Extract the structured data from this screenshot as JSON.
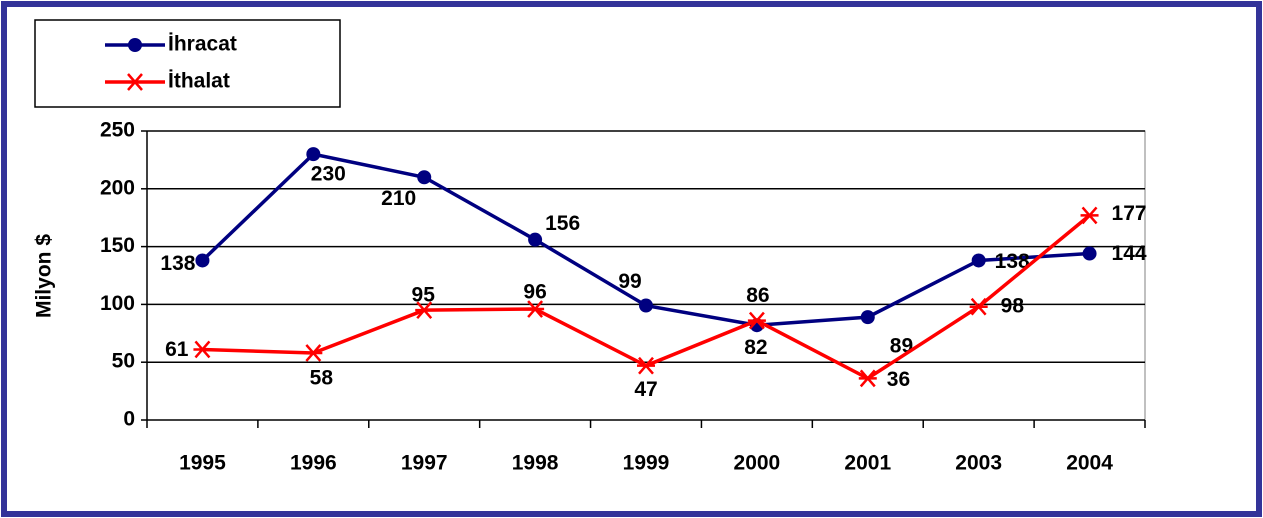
{
  "chart_data": {
    "type": "line",
    "y_label": "Milyon $",
    "categories": [
      "1995",
      "1996",
      "1997",
      "1998",
      "1999",
      "2000",
      "2001",
      "2003",
      "2004"
    ],
    "series": [
      {
        "name": "İhracat",
        "color": "#000080",
        "marker": "circle",
        "values": [
          138,
          230,
          210,
          156,
          99,
          82,
          89,
          138,
          144
        ]
      },
      {
        "name": "İthalat",
        "color": "#ff0000",
        "marker": "star",
        "values": [
          61,
          58,
          95,
          96,
          47,
          86,
          36,
          98,
          177
        ]
      }
    ],
    "ylim": [
      0,
      250
    ],
    "yticks": [
      0,
      50,
      100,
      150,
      200,
      250
    ],
    "grid": true,
    "legend": "top-left"
  }
}
